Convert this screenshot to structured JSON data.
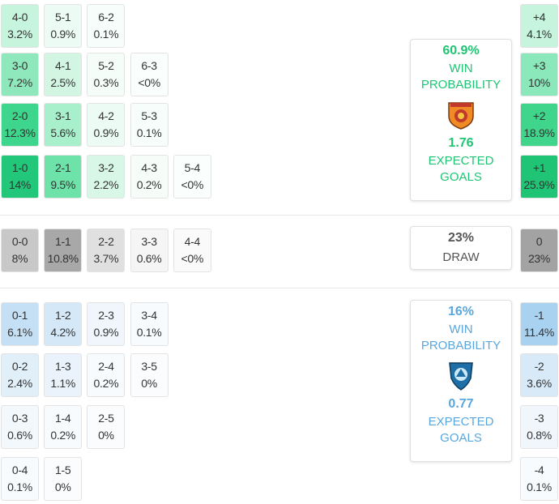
{
  "home": {
    "rows": [
      [
        {
          "score": "4-0",
          "prob": "3.2%",
          "color": "#c6f4dc"
        },
        {
          "score": "5-1",
          "prob": "0.9%",
          "color": "#ecfbf3"
        },
        {
          "score": "6-2",
          "prob": "0.1%",
          "color": "#f7fdfa"
        }
      ],
      [
        {
          "score": "3-0",
          "prob": "7.2%",
          "color": "#8ee8bb"
        },
        {
          "score": "4-1",
          "prob": "2.5%",
          "color": "#d3f6e3"
        },
        {
          "score": "5-2",
          "prob": "0.3%",
          "color": "#f5fdf9"
        },
        {
          "score": "6-3",
          "prob": "<0%",
          "color": "#fafefc"
        }
      ],
      [
        {
          "score": "2-0",
          "prob": "12.3%",
          "color": "#3dd68c"
        },
        {
          "score": "3-1",
          "prob": "5.6%",
          "color": "#a8efcb"
        },
        {
          "score": "4-2",
          "prob": "0.9%",
          "color": "#ecfbf3"
        },
        {
          "score": "5-3",
          "prob": "0.1%",
          "color": "#f7fdfa"
        }
      ],
      [
        {
          "score": "1-0",
          "prob": "14%",
          "color": "#22c77a"
        },
        {
          "score": "2-1",
          "prob": "9.5%",
          "color": "#6de3a9"
        },
        {
          "score": "3-2",
          "prob": "2.2%",
          "color": "#d8f7e6"
        },
        {
          "score": "4-3",
          "prob": "0.2%",
          "color": "#f6fdf9"
        },
        {
          "score": "5-4",
          "prob": "<0%",
          "color": "#fafefc"
        }
      ]
    ],
    "margins": [
      {
        "score": "+4",
        "prob": "4.1%",
        "color": "#c6f4dc"
      },
      {
        "score": "+3",
        "prob": "10%",
        "color": "#8ae8bb"
      },
      {
        "score": "+2",
        "prob": "18.9%",
        "color": "#3fd58b"
      },
      {
        "score": "+1",
        "prob": "25.9%",
        "color": "#1fc574"
      }
    ],
    "summary": {
      "win": "60.9%",
      "win_label": "WIN PROBABILITY",
      "xg": "1.76",
      "xg_label": "EXPECTED GOALS",
      "color": "#1fc574"
    }
  },
  "draw": {
    "row": [
      {
        "score": "0-0",
        "prob": "8%",
        "color": "#c8c8c8"
      },
      {
        "score": "1-1",
        "prob": "10.8%",
        "color": "#a8a8a8"
      },
      {
        "score": "2-2",
        "prob": "3.7%",
        "color": "#e0e0e0"
      },
      {
        "score": "3-3",
        "prob": "0.6%",
        "color": "#f5f5f5"
      },
      {
        "score": "4-4",
        "prob": "<0%",
        "color": "#fafafa"
      }
    ],
    "margin": {
      "score": "0",
      "prob": "23%",
      "color": "#a3a3a3"
    },
    "summary": {
      "prob": "23%",
      "label": "DRAW"
    }
  },
  "away": {
    "rows": [
      [
        {
          "score": "0-1",
          "prob": "6.1%",
          "color": "#c5e0f5"
        },
        {
          "score": "1-2",
          "prob": "4.2%",
          "color": "#d4e8f8"
        },
        {
          "score": "2-3",
          "prob": "0.9%",
          "color": "#f0f6fc"
        },
        {
          "score": "3-4",
          "prob": "0.1%",
          "color": "#f8fbfd"
        }
      ],
      [
        {
          "score": "0-2",
          "prob": "2.4%",
          "color": "#e1eff9"
        },
        {
          "score": "1-3",
          "prob": "1.1%",
          "color": "#eaf3fb"
        },
        {
          "score": "2-4",
          "prob": "0.2%",
          "color": "#f8fbfd"
        },
        {
          "score": "3-5",
          "prob": "0%",
          "color": "#fbfcfe"
        }
      ],
      [
        {
          "score": "0-3",
          "prob": "0.6%",
          "color": "#f3f8fc"
        },
        {
          "score": "1-4",
          "prob": "0.2%",
          "color": "#f8fbfd"
        },
        {
          "score": "2-5",
          "prob": "0%",
          "color": "#fbfcfe"
        }
      ],
      [
        {
          "score": "0-4",
          "prob": "0.1%",
          "color": "#f8fbfd"
        },
        {
          "score": "1-5",
          "prob": "0%",
          "color": "#fbfcfe"
        }
      ]
    ],
    "margins": [
      {
        "score": "-1",
        "prob": "11.4%",
        "color": "#a9d2f1"
      },
      {
        "score": "-2",
        "prob": "3.6%",
        "color": "#d8eaf8"
      },
      {
        "score": "-3",
        "prob": "0.8%",
        "color": "#f0f6fc"
      },
      {
        "score": "-4",
        "prob": "0.1%",
        "color": "#f8fbfd"
      }
    ],
    "summary": {
      "win": "16%",
      "win_label": "WIN PROBABILITY",
      "xg": "0.77",
      "xg_label": "EXPECTED GOALS",
      "color": "#5aa7dd"
    }
  }
}
